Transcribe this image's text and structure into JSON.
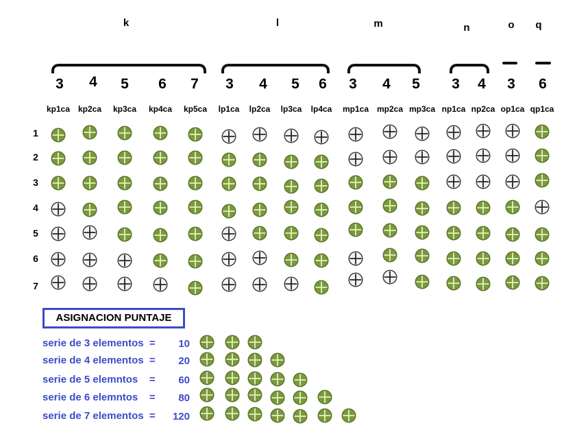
{
  "groups": [
    {
      "letter": "k",
      "sizes": [
        "3",
        "4",
        "5",
        "6",
        "7"
      ],
      "codes": [
        "kp1ca",
        "kp2ca",
        "kp3ca",
        "kp4ca",
        "kp5ca"
      ],
      "states": [
        [
          "g",
          "g",
          "g",
          "g",
          "g"
        ],
        [
          "g",
          "g",
          "g",
          "g",
          "g"
        ],
        [
          "g",
          "g",
          "g",
          "g",
          "g"
        ],
        [
          "w",
          "g",
          "g",
          "g",
          "g"
        ],
        [
          "w",
          "w",
          "g",
          "g",
          "g"
        ],
        [
          "w",
          "w",
          "w",
          "g",
          "g"
        ],
        [
          "w",
          "w",
          "w",
          "w",
          "g"
        ]
      ]
    },
    {
      "letter": "l",
      "sizes": [
        "3",
        "4",
        "5",
        "6"
      ],
      "codes": [
        "lp1ca",
        "lp2ca",
        "lp3ca",
        "lp4ca"
      ],
      "states": [
        [
          "w",
          "w",
          "w",
          "w"
        ],
        [
          "g",
          "g",
          "g",
          "g"
        ],
        [
          "g",
          "g",
          "g",
          "g"
        ],
        [
          "g",
          "g",
          "g",
          "g"
        ],
        [
          "w",
          "g",
          "g",
          "g"
        ],
        [
          "w",
          "w",
          "g",
          "g"
        ],
        [
          "w",
          "w",
          "w",
          "g"
        ]
      ]
    },
    {
      "letter": "m",
      "sizes": [
        "3",
        "4",
        "5"
      ],
      "codes": [
        "mp1ca",
        "mp2ca",
        "mp3ca"
      ],
      "states": [
        [
          "w",
          "w",
          "w"
        ],
        [
          "w",
          "w",
          "w"
        ],
        [
          "g",
          "g",
          "g"
        ],
        [
          "g",
          "g",
          "g"
        ],
        [
          "g",
          "g",
          "g"
        ],
        [
          "w",
          "g",
          "g"
        ],
        [
          "w",
          "w",
          "g"
        ]
      ]
    },
    {
      "letter": "n",
      "sizes": [
        "3",
        "4"
      ],
      "codes": [
        "np1ca",
        "np2ca"
      ],
      "states": [
        [
          "w",
          "w"
        ],
        [
          "w",
          "w"
        ],
        [
          "w",
          "w"
        ],
        [
          "g",
          "g"
        ],
        [
          "g",
          "g"
        ],
        [
          "g",
          "g"
        ],
        [
          "g",
          "g"
        ]
      ]
    },
    {
      "letter": "o",
      "sizes": [
        "3"
      ],
      "codes": [
        "op1ca"
      ],
      "states": [
        [
          "w"
        ],
        [
          "w"
        ],
        [
          "w"
        ],
        [
          "g"
        ],
        [
          "g"
        ],
        [
          "g"
        ],
        [
          "g"
        ]
      ]
    },
    {
      "letter": "q",
      "sizes": [
        "6"
      ],
      "codes": [
        "qp1ca"
      ],
      "states": [
        [
          "g"
        ],
        [
          "g"
        ],
        [
          "g"
        ],
        [
          "w"
        ],
        [
          "g"
        ],
        [
          "g"
        ],
        [
          "g"
        ]
      ]
    }
  ],
  "rows": [
    "1",
    "2",
    "3",
    "4",
    "5",
    "6",
    "7"
  ],
  "scoring": {
    "title": "ASIGNACION PUNTAJE",
    "rules": [
      {
        "label": "serie de 3 elementos  =",
        "points": "10",
        "count": 3
      },
      {
        "label": "serie de 4 elementos  =",
        "points": "20",
        "count": 4
      },
      {
        "label": "serie de 5 elemntos    =",
        "points": "60",
        "count": 5
      },
      {
        "label": "serie de 6 elemntos    =",
        "points": "80",
        "count": 6
      },
      {
        "label": "serie de 7 elementos  =",
        "points": "120",
        "count": 7
      }
    ]
  },
  "colors": {
    "green": "#7a9a3c",
    "green_dark": "#587226",
    "white_fill": "#f2f2f2",
    "label_blue": "#3b4bc8"
  },
  "icons": {
    "green": "green-cross-circle-icon",
    "white": "white-cross-circle-icon"
  }
}
